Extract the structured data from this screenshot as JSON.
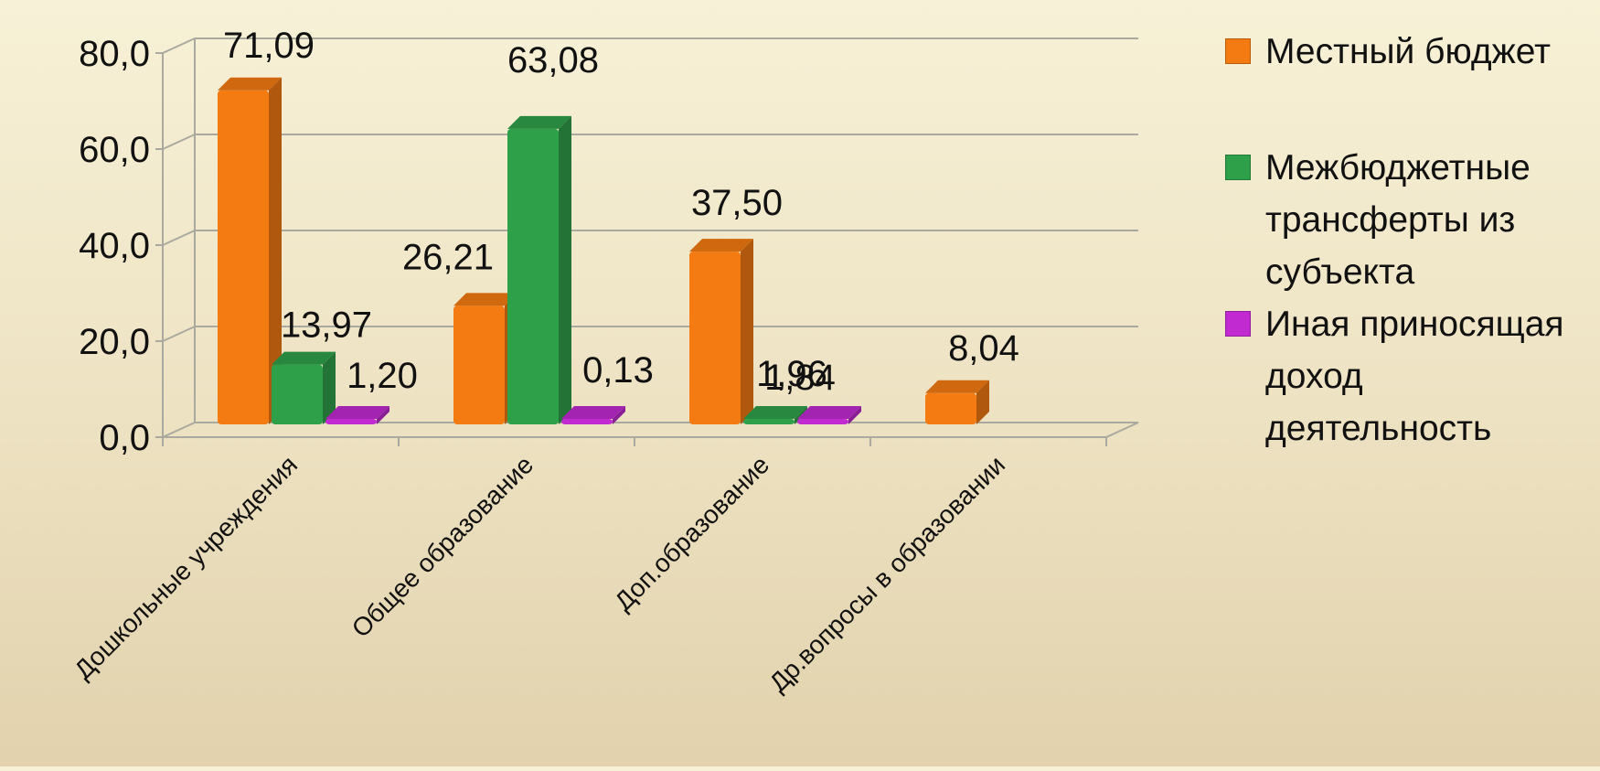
{
  "chart_data": {
    "type": "bar",
    "categories": [
      "Дошкольные учреждения",
      "Общее образование",
      "Доп.образование",
      "Др.вопросы в образовании"
    ],
    "series": [
      {
        "name": "Местный бюджет",
        "color": "#f47a12",
        "values": [
          71.09,
          26.21,
          37.5,
          8.04
        ]
      },
      {
        "name": "Межбюджетные трансферты из субъекта",
        "color": "#2fa04a",
        "values": [
          13.97,
          63.08,
          1.84,
          null
        ]
      },
      {
        "name": "Иная приносящая доход деятельность",
        "color": "#c02ad0",
        "values": [
          1.2,
          0.13,
          1.96,
          null
        ]
      }
    ],
    "data_labels": [
      [
        "71,09",
        "13,97",
        "1,20"
      ],
      [
        "26,21",
        "63,08",
        "0,13"
      ],
      [
        "37,50",
        "1,84",
        "1,96"
      ],
      [
        "8,04",
        "",
        ""
      ]
    ],
    "y_ticks": [
      "0,0",
      "20,0",
      "40,0",
      "60,0",
      "80,0"
    ],
    "ylim": [
      0,
      80
    ],
    "grid": true,
    "legend_position": "right",
    "title": "",
    "xlabel": "",
    "ylabel": ""
  }
}
